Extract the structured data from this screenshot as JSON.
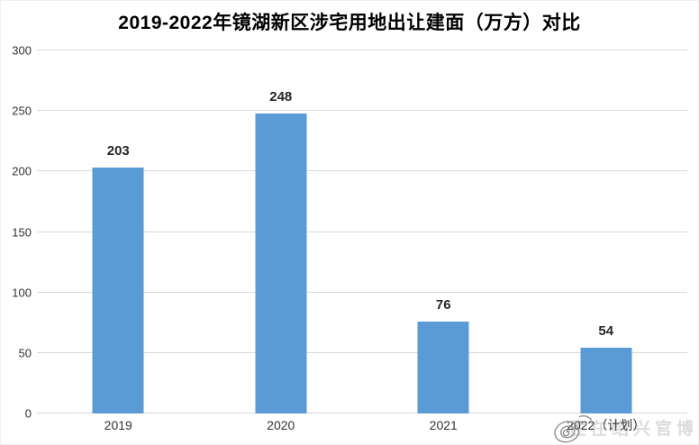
{
  "chart_data": {
    "type": "bar",
    "title": "2019-2022年镜湖新区涉宅用地出让建面（万方）对比",
    "categories": [
      "2019",
      "2020",
      "2021",
      "2022（计划）"
    ],
    "values": [
      203,
      248,
      76,
      54
    ],
    "xlabel": "",
    "ylabel": "",
    "ylim": [
      0,
      300
    ],
    "yticks": [
      0,
      50,
      100,
      150,
      200,
      250,
      300
    ],
    "grid": true,
    "legend": "none",
    "bar_color": "#5B9BD5",
    "gridline_color": "#D9D9D9",
    "value_label_color": "#262626",
    "tick_label_color": "#333333",
    "background_color": "#FFFFFF"
  },
  "watermark": {
    "text": "住在绍兴官博",
    "icon": "weibo-logo-icon",
    "text_color": "#DCDCDC",
    "icon_color": "#8F8F8F"
  }
}
